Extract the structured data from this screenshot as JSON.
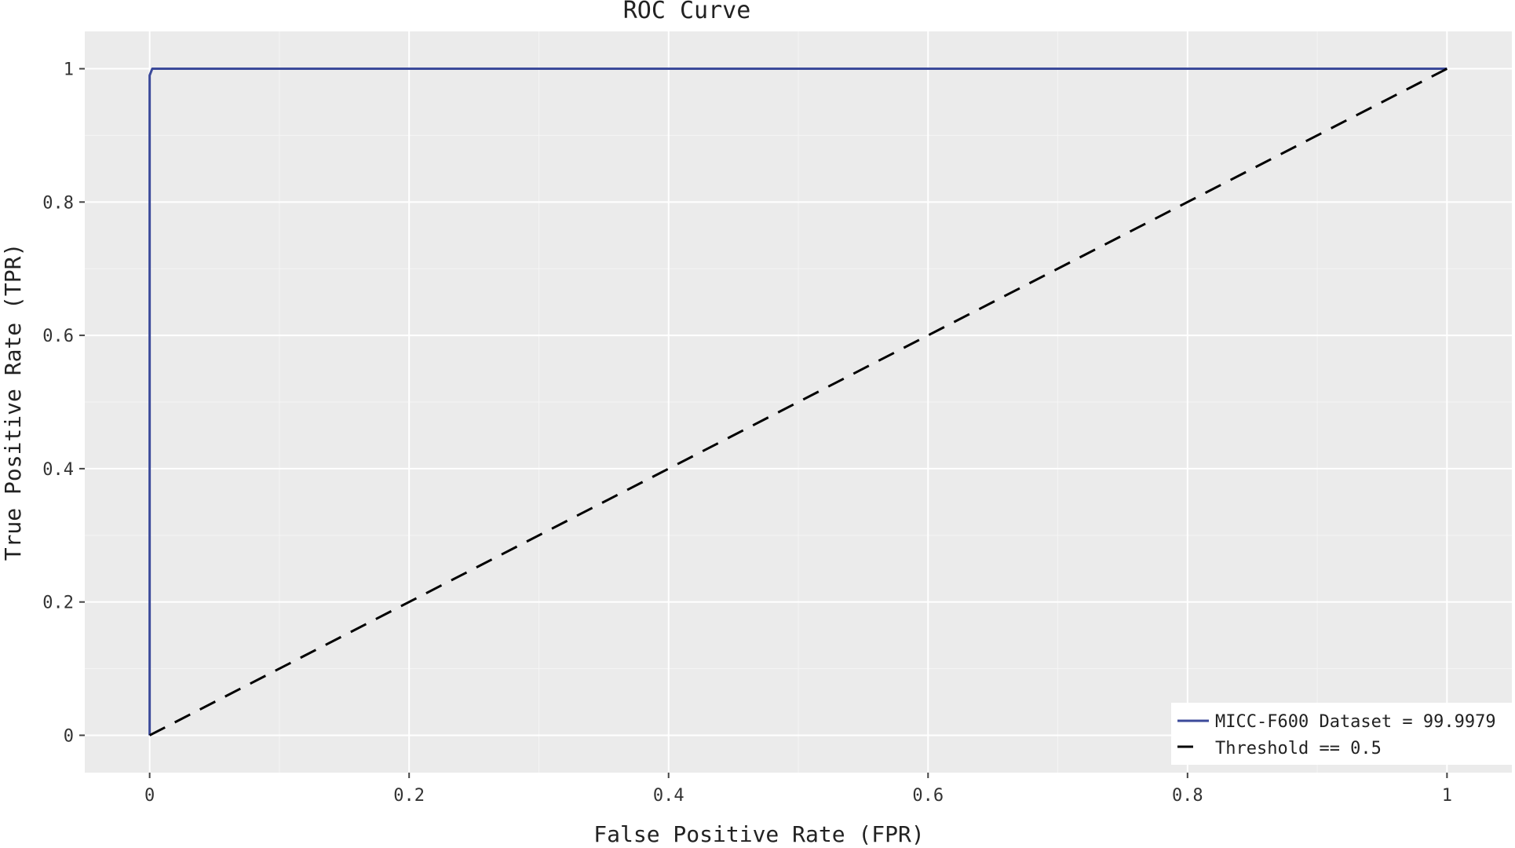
{
  "chart_data": {
    "type": "line",
    "title": "ROC Curve",
    "xlabel": "False Positive Rate (FPR)",
    "ylabel": "True Positive Rate (TPR)",
    "xlim": [
      -0.05,
      1.05
    ],
    "ylim": [
      -0.056,
      1.056
    ],
    "x_ticks": [
      0,
      0.2,
      0.4,
      0.6,
      0.8,
      1
    ],
    "x_tick_labels": [
      "0",
      "0.2",
      "0.4",
      "0.6",
      "0.8",
      "1"
    ],
    "y_ticks": [
      0,
      0.2,
      0.4,
      0.6,
      0.8,
      1
    ],
    "y_tick_labels": [
      "0",
      "0.2",
      "0.4",
      "0.6",
      "0.8",
      "1"
    ],
    "grid": true,
    "background": "#ebebeb",
    "legend_position": "bottom-right",
    "series": [
      {
        "name": "MICC-F600 Dataset = 99.9979",
        "color": "#3b4a9a",
        "style": "solid",
        "x": [
          0,
          0,
          0.002,
          0.02,
          1
        ],
        "y": [
          0,
          0.99,
          1,
          1,
          1
        ]
      },
      {
        "name": "Threshold == 0.5",
        "color": "#000000",
        "style": "dashed",
        "x": [
          0,
          1
        ],
        "y": [
          0,
          1
        ]
      }
    ]
  }
}
